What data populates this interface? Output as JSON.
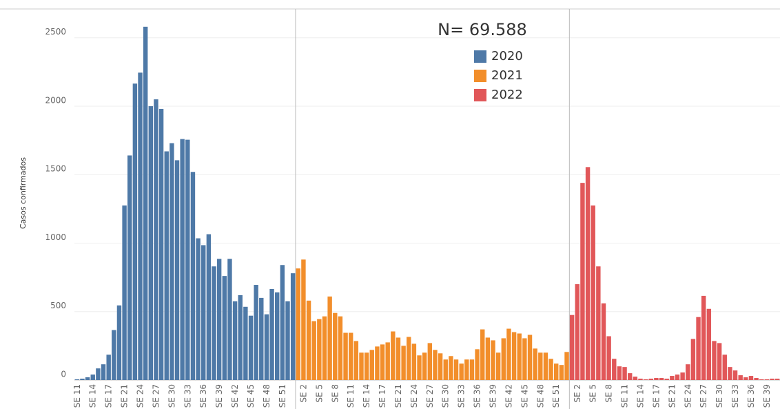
{
  "chart_data": {
    "type": "bar",
    "annotation": "N= 69.588",
    "y_label": "Casos confirmados",
    "categories": [
      "SE 11",
      null,
      null,
      "SE 14",
      null,
      null,
      "SE 17",
      null,
      null,
      "SE 21",
      null,
      null,
      "SE 24",
      null,
      null,
      "SE 27",
      null,
      null,
      "SE 30",
      null,
      null,
      "SE 33",
      null,
      null,
      "SE 36",
      null,
      null,
      "SE 39",
      null,
      null,
      "SE 42",
      null,
      null,
      "SE 45",
      null,
      null,
      "SE 48",
      null,
      null,
      "SE 51",
      null,
      null,
      null,
      "SE 2",
      null,
      null,
      "SE 5",
      null,
      null,
      "SE 8",
      null,
      null,
      "SE 11",
      null,
      null,
      "SE 14",
      null,
      null,
      "SE 17",
      null,
      null,
      "SE 21",
      null,
      null,
      "SE 24",
      null,
      null,
      "SE 27",
      null,
      null,
      "SE 30",
      null,
      null,
      "SE 33",
      null,
      null,
      "SE 36",
      null,
      null,
      "SE 39",
      null,
      null,
      "SE 42",
      null,
      null,
      "SE 45",
      null,
      null,
      "SE 48",
      null,
      null,
      "SE 51",
      null,
      null,
      null,
      "SE 2",
      null,
      null,
      "SE 5",
      null,
      null,
      "SE 8",
      null,
      null,
      "SE 11",
      null,
      null,
      "SE 14",
      null,
      null,
      "SE 17",
      null,
      null,
      "SE 21",
      null,
      null,
      "SE 24",
      null,
      null,
      "SE 27",
      null,
      null,
      "SE 30",
      null,
      null,
      "SE 33",
      null,
      null,
      "SE 36",
      null,
      null,
      "SE 39",
      null,
      null
    ],
    "series": [
      {
        "name": "2020",
        "color": "#4e79a7",
        "values": [
          5,
          10,
          20,
          40,
          85,
          115,
          185,
          365,
          545,
          1275,
          1640,
          2165,
          2245,
          2580,
          2000,
          2050,
          1980,
          1670,
          1730,
          1605,
          1760,
          1755,
          1520,
          1035,
          985,
          1065,
          830,
          885,
          760,
          885,
          575,
          620,
          535,
          470,
          695,
          600,
          480,
          665,
          640,
          840,
          575,
          780,
          null,
          null,
          null,
          null,
          null,
          null,
          null,
          null,
          null,
          null,
          null,
          null,
          null,
          null,
          null,
          null,
          null,
          null,
          null,
          null,
          null,
          null,
          null,
          null,
          null,
          null,
          null,
          null,
          null,
          null,
          null,
          null,
          null,
          null,
          null,
          null,
          null,
          null,
          null,
          null,
          null,
          null,
          null,
          null,
          null,
          null,
          null,
          null,
          null,
          null,
          null,
          null,
          null,
          null,
          null,
          null,
          null,
          null,
          null,
          null,
          null,
          null,
          null,
          null,
          null,
          null,
          null,
          null,
          null,
          null,
          null,
          null,
          null,
          null,
          null,
          null,
          null,
          null,
          null,
          null,
          null,
          null,
          null,
          null,
          null,
          null,
          null,
          null,
          null,
          null,
          null,
          null
        ]
      },
      {
        "name": "2021",
        "color": "#f28e2b",
        "values": [
          null,
          null,
          null,
          null,
          null,
          null,
          null,
          null,
          null,
          null,
          null,
          null,
          null,
          null,
          null,
          null,
          null,
          null,
          null,
          null,
          null,
          null,
          null,
          null,
          null,
          null,
          null,
          null,
          null,
          null,
          null,
          null,
          null,
          null,
          null,
          null,
          null,
          null,
          null,
          null,
          null,
          null,
          815,
          880,
          580,
          430,
          445,
          465,
          610,
          490,
          465,
          345,
          345,
          285,
          200,
          200,
          220,
          245,
          260,
          275,
          355,
          310,
          250,
          315,
          265,
          180,
          200,
          270,
          220,
          195,
          150,
          175,
          150,
          120,
          150,
          150,
          225,
          370,
          310,
          290,
          200,
          305,
          375,
          350,
          340,
          305,
          330,
          230,
          200,
          200,
          155,
          120,
          110,
          205,
          null,
          null,
          null,
          null,
          null,
          null,
          null,
          null,
          null,
          null,
          null,
          null,
          null,
          null,
          null,
          null,
          null,
          null,
          null,
          null,
          null,
          null,
          null,
          null,
          null,
          null,
          null,
          null,
          null,
          null,
          null,
          null,
          null,
          null,
          null,
          null,
          null,
          null,
          null,
          null
        ]
      },
      {
        "name": "2022",
        "color": "#e15759",
        "values": [
          null,
          null,
          null,
          null,
          null,
          null,
          null,
          null,
          null,
          null,
          null,
          null,
          null,
          null,
          null,
          null,
          null,
          null,
          null,
          null,
          null,
          null,
          null,
          null,
          null,
          null,
          null,
          null,
          null,
          null,
          null,
          null,
          null,
          null,
          null,
          null,
          null,
          null,
          null,
          null,
          null,
          null,
          null,
          null,
          null,
          null,
          null,
          null,
          null,
          null,
          null,
          null,
          null,
          null,
          null,
          null,
          null,
          null,
          null,
          null,
          null,
          null,
          null,
          null,
          null,
          null,
          null,
          null,
          null,
          null,
          null,
          null,
          null,
          null,
          null,
          null,
          null,
          null,
          null,
          null,
          null,
          null,
          null,
          null,
          null,
          null,
          null,
          null,
          null,
          null,
          null,
          null,
          null,
          null,
          475,
          700,
          1440,
          1555,
          1275,
          830,
          560,
          320,
          155,
          100,
          95,
          50,
          25,
          10,
          5,
          10,
          15,
          15,
          10,
          30,
          40,
          55,
          115,
          300,
          460,
          615,
          520,
          285,
          270,
          185,
          95,
          70,
          35,
          20,
          30,
          15,
          5,
          5,
          10,
          10
        ]
      }
    ],
    "ylim": [
      0,
      2710
    ],
    "yticks": [
      0,
      500,
      1000,
      1500,
      2000,
      2500
    ],
    "grid": true
  }
}
